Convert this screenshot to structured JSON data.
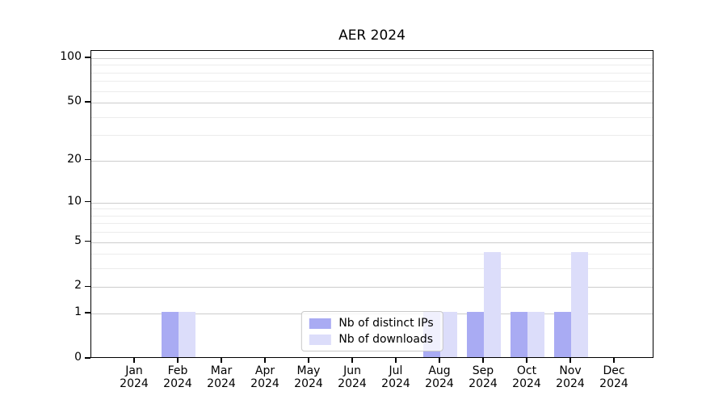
{
  "chart_data": {
    "type": "bar",
    "title": "AER 2024",
    "x_months": [
      "Jan",
      "Feb",
      "Mar",
      "Apr",
      "May",
      "Jun",
      "Jul",
      "Aug",
      "Sep",
      "Oct",
      "Nov",
      "Dec"
    ],
    "x_year": "2024",
    "series": [
      {
        "name": "Nb of distinct IPs",
        "color": "#a9abf3",
        "values": [
          0,
          1,
          0,
          0,
          0,
          0,
          0,
          1,
          1,
          1,
          1,
          0
        ]
      },
      {
        "name": "Nb of downloads",
        "color": "#dcddfa",
        "values": [
          0,
          1,
          0,
          0,
          0,
          0,
          0,
          1,
          4,
          1,
          4,
          0
        ]
      }
    ],
    "y_axis": {
      "scale": "log10(value+1)",
      "major_ticks": [
        0,
        1,
        2,
        5,
        10,
        20,
        50,
        100
      ],
      "minor_gridlines": [
        3,
        4,
        6,
        7,
        8,
        9,
        30,
        40,
        60,
        70,
        80,
        90
      ],
      "range": [
        0,
        110
      ]
    },
    "legend": {
      "position": "lower center",
      "items": [
        "Nb of distinct IPs",
        "Nb of downloads"
      ]
    },
    "grid": true
  },
  "colors": {
    "background": "#ffffff",
    "axis": "#000000",
    "grid_major": "#cccccc",
    "grid_minor": "#ececec",
    "legend_border": "#c9c9c9",
    "bar_distinct_ips": "#a9abf3",
    "bar_downloads": "#dcddfa"
  }
}
